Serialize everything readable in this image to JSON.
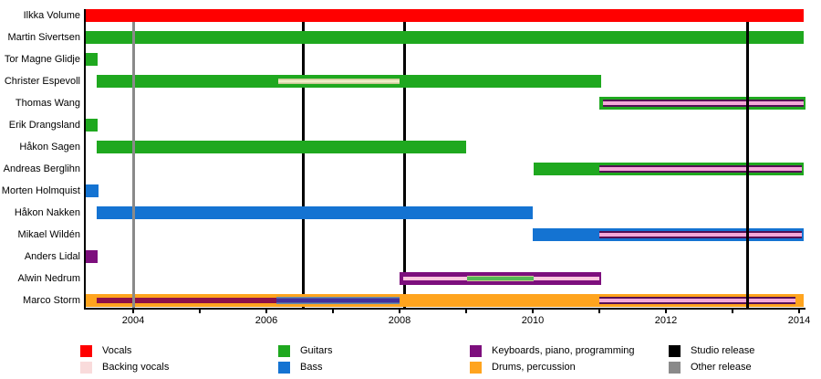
{
  "chart_data": {
    "type": "timeline",
    "title": "",
    "axis": {
      "origin_year": 2004,
      "start_year": 2003.27,
      "end_year": 2014.1,
      "tick_years": [
        2004,
        2005,
        2006,
        2007,
        2008,
        2009,
        2010,
        2011,
        2012,
        2013,
        2014
      ],
      "labeled_years": [
        2004,
        2006,
        2008,
        2010,
        2012,
        2014
      ],
      "tick_labels": [
        "2004",
        "2006",
        "2008",
        "2010",
        "2012",
        "2014"
      ]
    },
    "colors": {
      "vocals": "#ff0000",
      "backing": "#f9dbdb",
      "guitars": "#1fa81f",
      "bass": "#1473d2",
      "keys": "#7d0f7d",
      "drums": "#ffa41e",
      "studio": "#000000",
      "other": "#8a8a8a",
      "maroon": "#8d1048",
      "indigo": "#41309c",
      "indigo_edge": "#6b90aa",
      "stripe_dark": "#551055",
      "stripe_pink": "#f5a9d9",
      "cream": "#efecc8",
      "cream_edge": "#c9c994",
      "pale_pink": "#ffc6de",
      "stripe_green": "#55b855"
    },
    "members": [
      {
        "name": "Ilkka Volume",
        "bars": [
          [
            2003.27,
            2014.07,
            "vocals"
          ]
        ],
        "stripes": []
      },
      {
        "name": "Martin Sivertsen",
        "bars": [
          [
            2003.27,
            2014.07,
            "guitars"
          ]
        ],
        "stripes": []
      },
      {
        "name": "Tor Magne Glidje",
        "bars": [
          [
            2003.27,
            2003.46,
            "guitars"
          ]
        ],
        "stripes": []
      },
      {
        "name": "Christer Espevoll",
        "bars": [
          [
            2003.45,
            2011.03,
            "guitars"
          ]
        ],
        "stripes": [
          [
            2006.18,
            2008.0,
            "cream"
          ]
        ]
      },
      {
        "name": "Thomas Wang",
        "bars": [
          [
            2011.0,
            2014.1,
            "guitars"
          ]
        ],
        "stripes": [
          [
            2011.05,
            2014.07,
            "pink_purple"
          ]
        ]
      },
      {
        "name": "Erik Drangsland",
        "bars": [
          [
            2003.27,
            2003.46,
            "guitars"
          ]
        ],
        "stripes": []
      },
      {
        "name": "Håkon Sagen",
        "bars": [
          [
            2003.45,
            2009.0,
            "guitars"
          ]
        ],
        "stripes": []
      },
      {
        "name": "Andreas Berglihn",
        "bars": [
          [
            2010.02,
            2014.07,
            "guitars"
          ]
        ],
        "stripes": [
          [
            2011.0,
            2014.04,
            "pink_purple"
          ]
        ]
      },
      {
        "name": "Morten Holmquist",
        "bars": [
          [
            2003.27,
            2003.48,
            "bass"
          ]
        ],
        "stripes": []
      },
      {
        "name": "Håkon Nakken",
        "bars": [
          [
            2003.45,
            2010.0,
            "bass"
          ]
        ],
        "stripes": []
      },
      {
        "name": "Mikael Wildén",
        "bars": [
          [
            2010.0,
            2014.07,
            "bass"
          ]
        ],
        "stripes": [
          [
            2011.0,
            2014.04,
            "pink_purple"
          ]
        ]
      },
      {
        "name": "Anders Lidal",
        "bars": [
          [
            2003.27,
            2003.46,
            "keys"
          ]
        ],
        "stripes": []
      },
      {
        "name": "Alwin Nedrum",
        "bars": [
          [
            2008.0,
            2011.03,
            "keys"
          ]
        ],
        "stripes": [
          [
            2008.05,
            2011.0,
            "pale_pink"
          ],
          [
            2009.02,
            2010.02,
            "green_core"
          ]
        ]
      },
      {
        "name": "Marco Storm",
        "bars": [
          [
            2003.27,
            2014.07,
            "drums"
          ]
        ],
        "stripes": [
          [
            2003.45,
            2006.15,
            "maroon"
          ],
          [
            2006.15,
            2008.0,
            "indigo"
          ],
          [
            2011.0,
            2013.95,
            "pink_purple"
          ]
        ]
      }
    ],
    "releases": [
      {
        "year": 2004.0,
        "color": "other",
        "layer": "front"
      },
      {
        "year": 2006.55,
        "color": "studio",
        "layer": "back"
      },
      {
        "year": 2008.08,
        "color": "studio",
        "layer": "back"
      },
      {
        "year": 2013.22,
        "color": "studio",
        "layer": "front"
      }
    ],
    "legend": {
      "columns": [
        [
          {
            "label": "Vocals",
            "color": "vocals"
          },
          {
            "label": "Backing vocals",
            "color": "backing"
          }
        ],
        [
          {
            "label": "Guitars",
            "color": "guitars"
          },
          {
            "label": "Bass",
            "color": "bass"
          }
        ],
        [
          {
            "label": "Keyboards, piano, programming",
            "color": "keys"
          },
          {
            "label": "Drums, percussion",
            "color": "drums"
          }
        ],
        [
          {
            "label": "Studio release",
            "color": "studio"
          },
          {
            "label": "Other release",
            "color": "other"
          }
        ]
      ]
    }
  }
}
